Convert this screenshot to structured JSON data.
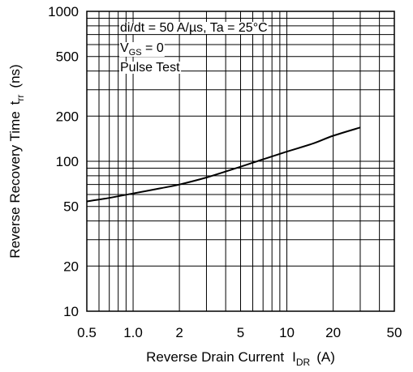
{
  "chart_data": {
    "type": "line",
    "x_scale": "log",
    "y_scale": "log",
    "xlim": [
      0.5,
      50
    ],
    "ylim": [
      10,
      1000
    ],
    "x_ticks": [
      0.5,
      1.0,
      2,
      5,
      10,
      20,
      50
    ],
    "x_tick_labels": [
      "0.5",
      "1.0",
      "2",
      "5",
      "10",
      "20",
      "50"
    ],
    "y_ticks": [
      10,
      20,
      50,
      100,
      200,
      500,
      1000
    ],
    "y_tick_labels": [
      "10",
      "20",
      "50",
      "100",
      "200",
      "500",
      "1000"
    ],
    "grid": true,
    "xlabel": {
      "main": "Reverse Drain Current",
      "symbol": "I",
      "sub": "DR",
      "unit": "(A)"
    },
    "ylabel": {
      "main": "Reverse Recovery Time",
      "symbol": "t",
      "sub": "rr",
      "unit": "(ns)"
    },
    "annotations": {
      "condition": "di/dt = 50 A/µs, Ta = 25°C",
      "vgs": {
        "symbol": "V",
        "sub": "GS",
        "rest": " = 0"
      },
      "test": "Pulse Test"
    },
    "series": [
      {
        "x": [
          0.5,
          0.7,
          1.0,
          1.5,
          2.0,
          3.0,
          5.0,
          7.0,
          10,
          15,
          20,
          30
        ],
        "y": [
          54,
          57,
          61,
          66,
          70,
          78,
          92,
          103,
          116,
          132,
          148,
          168
        ]
      }
    ]
  }
}
